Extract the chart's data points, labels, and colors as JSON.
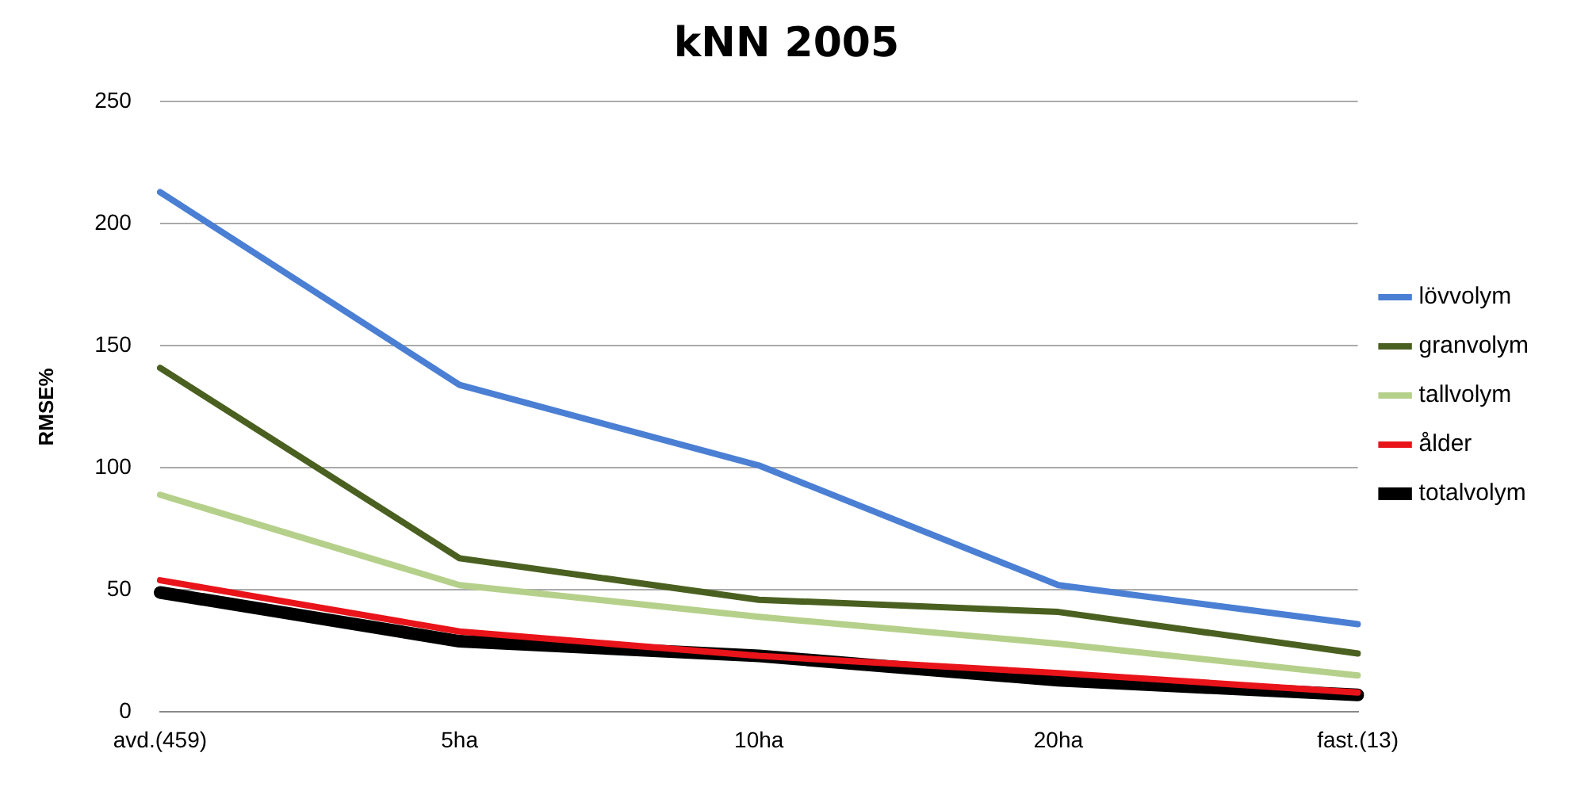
{
  "chart_data": {
    "type": "line",
    "title": "kNN 2005",
    "ylabel": "RMSE%",
    "categories": [
      "avd.(459)",
      "5ha",
      "10ha",
      "20ha",
      "fast.(13)"
    ],
    "series": [
      {
        "name": "lövvolym",
        "color": "#4a7fd4",
        "values": [
          213,
          134,
          101,
          52,
          36
        ]
      },
      {
        "name": "granvolym",
        "color": "#4a6020",
        "values": [
          141,
          63,
          46,
          41,
          24
        ]
      },
      {
        "name": "tallvolym",
        "color": "#b5d08a",
        "values": [
          89,
          52,
          39,
          28,
          15
        ]
      },
      {
        "name": "ålder",
        "color": "#e8141a",
        "values": [
          54,
          33,
          23,
          16,
          8
        ]
      },
      {
        "name": "totalvolym",
        "color": "#000000",
        "values": [
          49,
          29,
          23,
          13,
          7
        ]
      }
    ],
    "ylim": [
      0,
      250
    ],
    "yticks": [
      0,
      50,
      100,
      150,
      200,
      250
    ],
    "grid": "y",
    "legend": "right",
    "marker": "none",
    "line_style": "solid"
  }
}
